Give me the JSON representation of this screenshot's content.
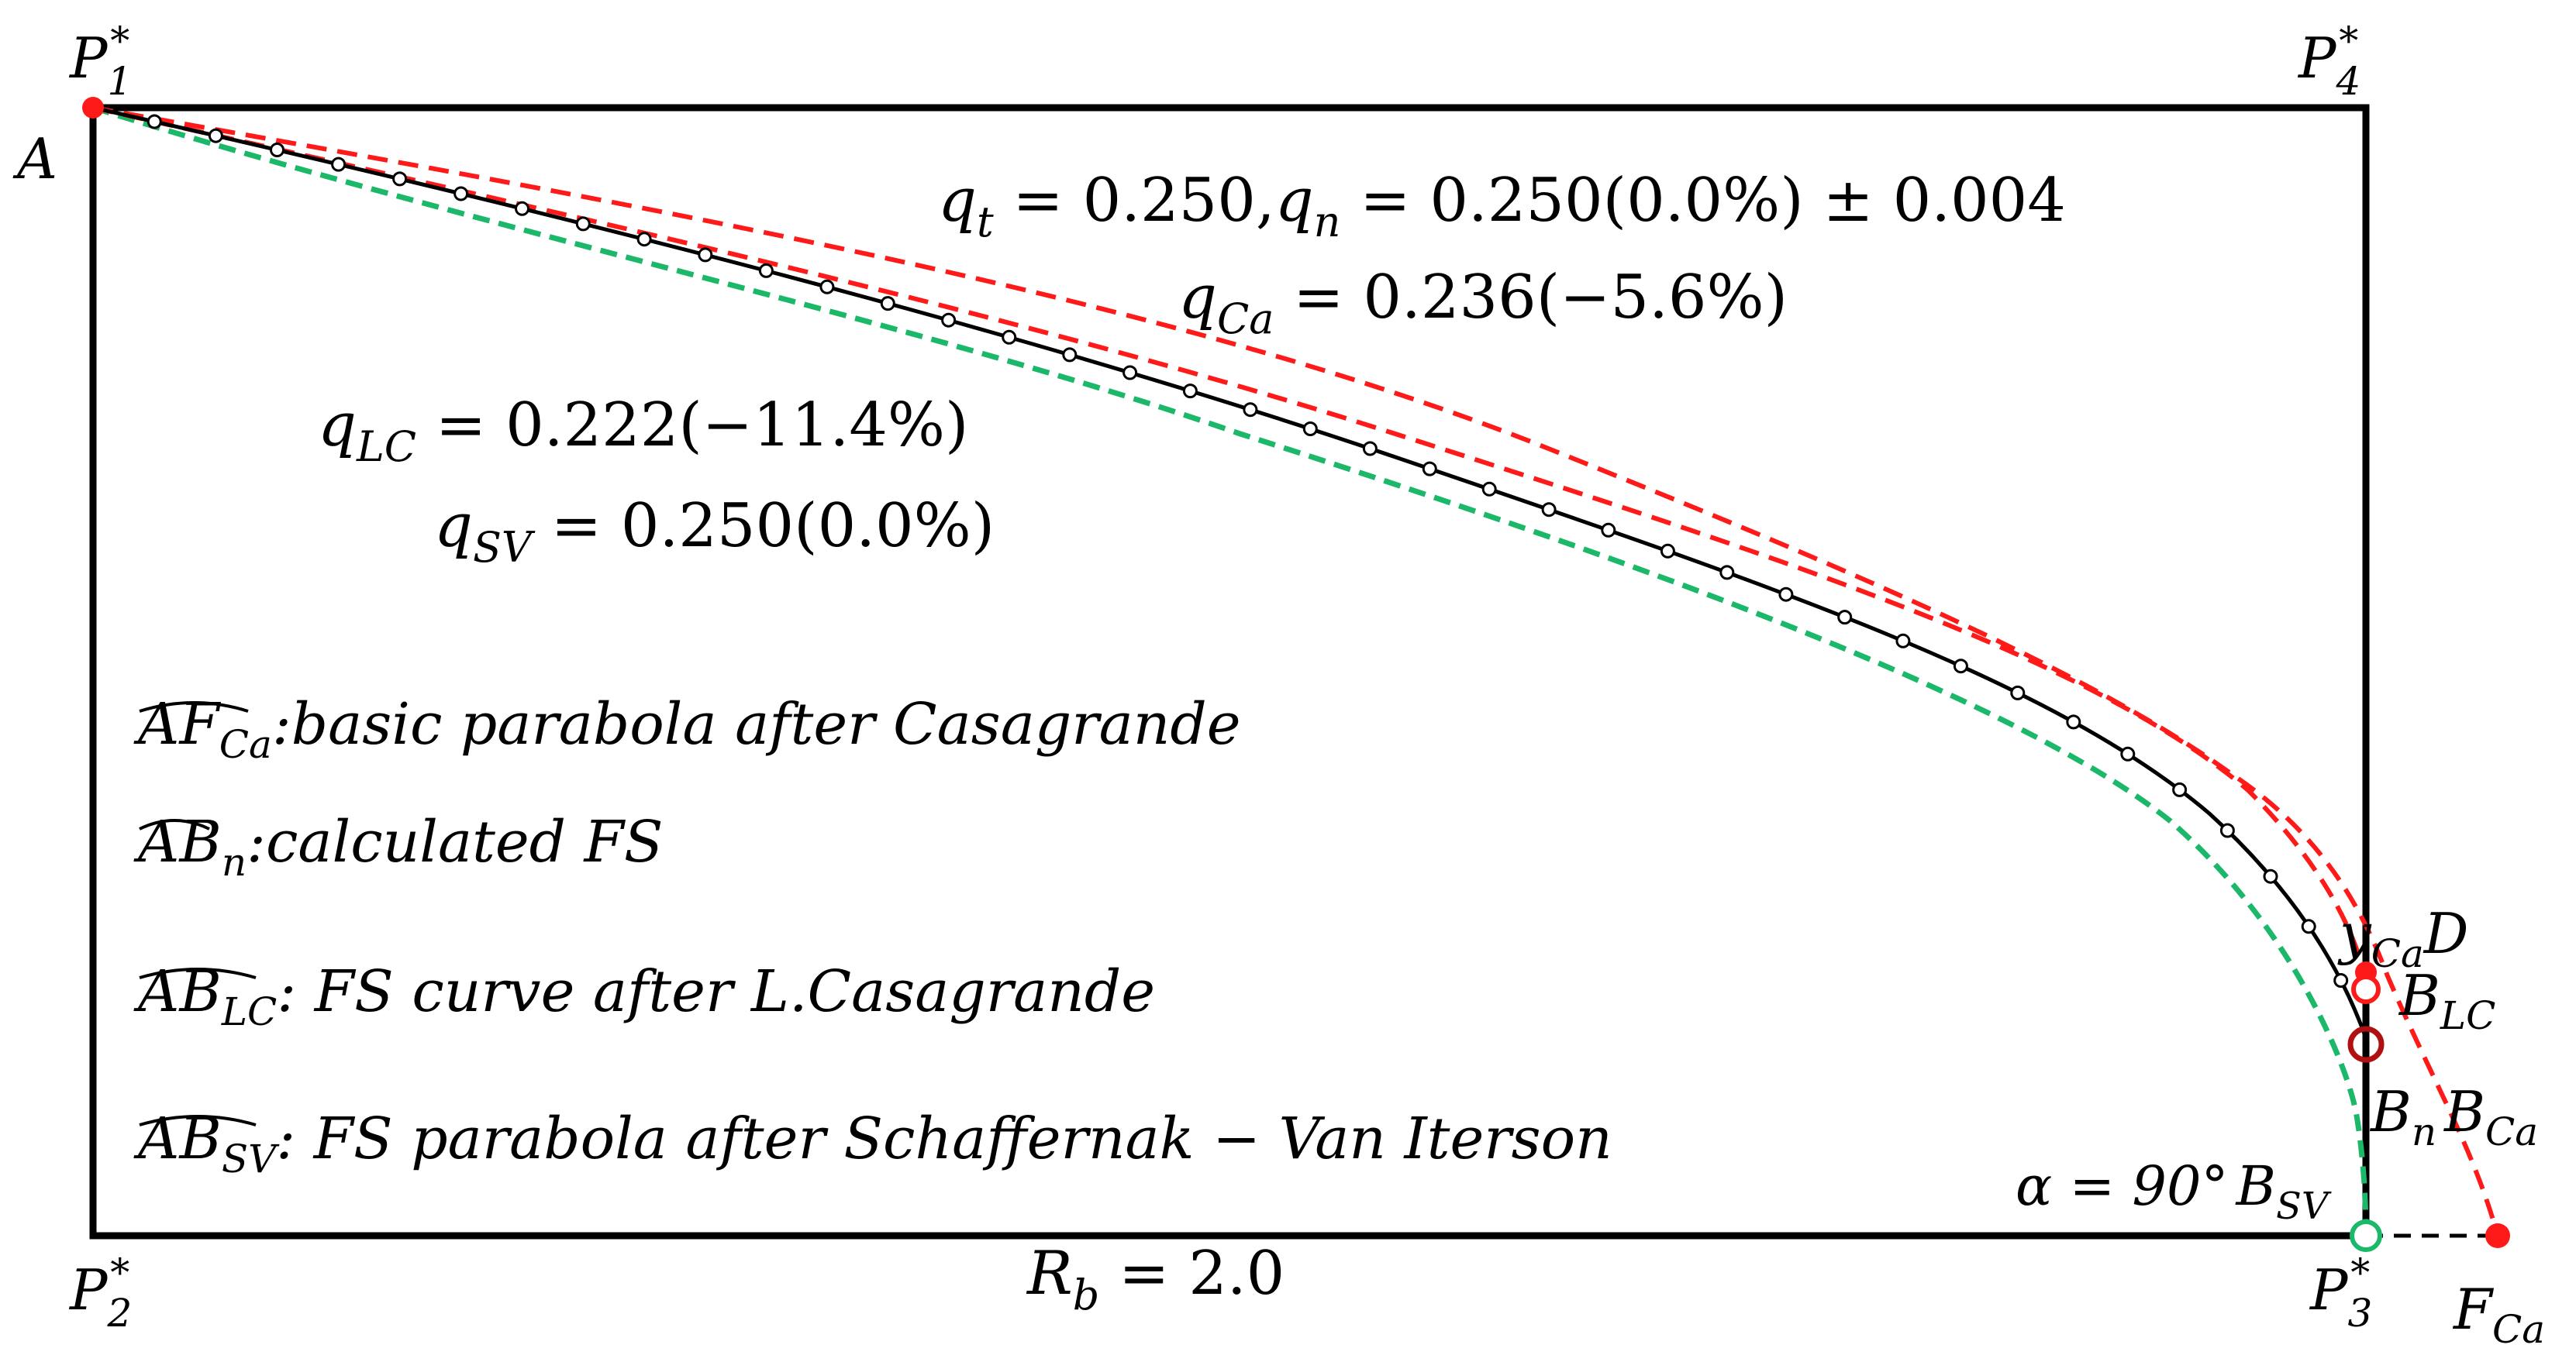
{
  "points": {
    "p1": {
      "base": "P",
      "sub": "1",
      "sup": "*"
    },
    "p2": {
      "base": "P",
      "sub": "2",
      "sup": "*"
    },
    "p3": {
      "base": "P",
      "sub": "3",
      "sup": "*"
    },
    "p4": {
      "base": "P",
      "sub": "4",
      "sup": "*"
    },
    "a": "A",
    "fca": {
      "base": "F",
      "sub": "Ca"
    },
    "yca": {
      "base": "y",
      "sub": "Ca",
      "after": "D"
    },
    "blc": {
      "base": "B",
      "sub": "LC"
    },
    "bn": {
      "base": "B",
      "sub": "n"
    },
    "bca": {
      "base": "B",
      "sub": "Ca"
    },
    "bsv": {
      "base": "B",
      "sub": "SV"
    }
  },
  "angle": {
    "text": "α = 90°"
  },
  "formulas": {
    "qt": {
      "q": "q",
      "sub": "t",
      "eq": " = 0.250,",
      "q2": "q",
      "sub2": "n",
      "eq2": " = 0.250(0.0%) ± 0.004"
    },
    "qca": {
      "q": "q",
      "sub": "Ca",
      "eq": " = 0.236(−5.6%)"
    },
    "qlc": {
      "q": "q",
      "sub": "LC",
      "eq": " = 0.222(−11.4%)"
    },
    "qsv": {
      "q": "q",
      "sub": "SV",
      "eq": " = 0.250(0.0%)"
    },
    "rb": {
      "base": "R",
      "sub": "b",
      "eq": " = 2.0"
    }
  },
  "legend": [
    {
      "arc": "AF",
      "sub": "Ca",
      "text": ":basic parabola after Casagrande"
    },
    {
      "arc": "AB",
      "sub": "n",
      "text": ":calculated FS"
    },
    {
      "arc": "AB",
      "sub": "LC",
      "text": ": FS curve after L.Casagrande"
    },
    {
      "arc": "AB",
      "sub": "SV",
      "text": ": FS parabola after Schaffernak − Van  Iterson"
    }
  ],
  "colors": {
    "frame": "#000000",
    "calculated": "#000000",
    "casagrande": "#ff1a1a",
    "lcasagrande": "#ff1a1a",
    "schaffernak": "#1cb86a"
  }
}
